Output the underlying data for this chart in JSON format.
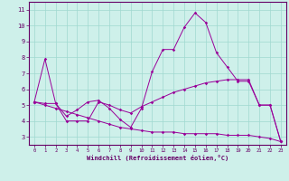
{
  "xlabel": "Windchill (Refroidissement éolien,°C)",
  "bg_color": "#cef0ea",
  "grid_color": "#a0d8d0",
  "line_color": "#990099",
  "xlim": [
    -0.5,
    23.5
  ],
  "ylim": [
    2.5,
    11.5
  ],
  "yticks": [
    3,
    4,
    5,
    6,
    7,
    8,
    9,
    10,
    11
  ],
  "xticks": [
    0,
    1,
    2,
    3,
    4,
    5,
    6,
    7,
    8,
    9,
    10,
    11,
    12,
    13,
    14,
    15,
    16,
    17,
    18,
    19,
    20,
    21,
    22,
    23
  ],
  "series": [
    {
      "x": [
        0,
        1,
        2,
        3,
        4,
        5,
        6,
        7,
        8,
        9,
        10,
        11,
        12,
        13,
        14,
        15,
        16,
        17,
        18,
        19,
        20,
        21,
        22,
        23
      ],
      "y": [
        5.2,
        7.9,
        5.1,
        4.3,
        4.7,
        5.2,
        5.3,
        4.8,
        4.1,
        3.6,
        4.8,
        7.1,
        8.5,
        8.5,
        9.9,
        10.8,
        10.2,
        8.3,
        7.4,
        6.5,
        6.5,
        5.0,
        5.0,
        2.7
      ]
    },
    {
      "x": [
        0,
        1,
        2,
        3,
        4,
        5,
        6,
        7,
        8,
        9,
        10,
        11,
        12,
        13,
        14,
        15,
        16,
        17,
        18,
        19,
        20,
        21,
        22,
        23
      ],
      "y": [
        5.2,
        5.1,
        5.1,
        4.0,
        4.0,
        4.0,
        5.2,
        5.0,
        4.7,
        4.5,
        4.9,
        5.2,
        5.5,
        5.8,
        6.0,
        6.2,
        6.4,
        6.5,
        6.6,
        6.6,
        6.6,
        5.0,
        5.0,
        2.7
      ]
    },
    {
      "x": [
        0,
        1,
        2,
        3,
        4,
        5,
        6,
        7,
        8,
        9,
        10,
        11,
        12,
        13,
        14,
        15,
        16,
        17,
        18,
        19,
        20,
        21,
        22,
        23
      ],
      "y": [
        5.2,
        5.0,
        4.8,
        4.6,
        4.4,
        4.2,
        4.0,
        3.8,
        3.6,
        3.5,
        3.4,
        3.3,
        3.3,
        3.3,
        3.2,
        3.2,
        3.2,
        3.2,
        3.1,
        3.1,
        3.1,
        3.0,
        2.9,
        2.7
      ]
    }
  ]
}
